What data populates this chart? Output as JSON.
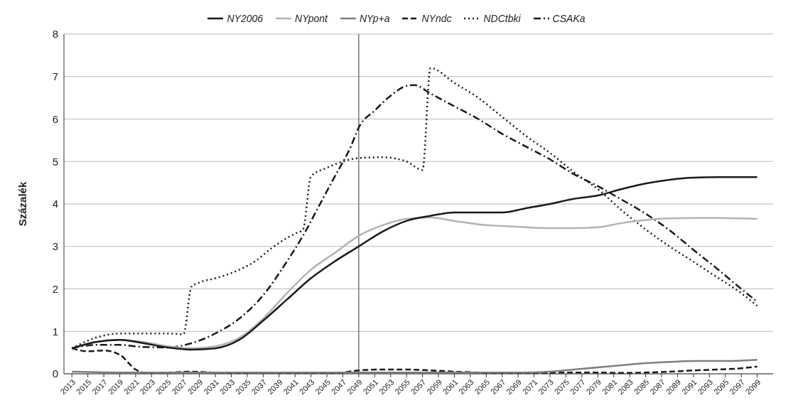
{
  "chart_data": {
    "type": "line",
    "ylabel": "Százalék",
    "xlim": [
      2012,
      2101
    ],
    "xticks": [
      2013,
      2015,
      2017,
      2019,
      2021,
      2023,
      2025,
      2027,
      2029,
      2031,
      2033,
      2035,
      2037,
      2039,
      2041,
      2043,
      2045,
      2047,
      2049,
      2051,
      2053,
      2055,
      2057,
      2059,
      2061,
      2063,
      2065,
      2067,
      2069,
      2071,
      2073,
      2075,
      2077,
      2079,
      2081,
      2083,
      2085,
      2087,
      2089,
      2091,
      2093,
      2095,
      2097,
      2099
    ],
    "ylim": [
      0,
      8
    ],
    "yticks": [
      0,
      1,
      2,
      3,
      4,
      5,
      6,
      7,
      8
    ],
    "grid": "y",
    "legend": "top",
    "marker": "none",
    "ref_lines": [
      {
        "axis": "x",
        "value": 2049,
        "color": "#333333"
      }
    ],
    "series": [
      {
        "name": "NY2006",
        "color": "#1a1a1a",
        "line_style": "solid",
        "x": [
          2013,
          2016,
          2019,
          2022,
          2025,
          2028,
          2031,
          2034,
          2037,
          2040,
          2043,
          2046,
          2049,
          2052,
          2055,
          2058,
          2061,
          2064,
          2067,
          2070,
          2073,
          2076,
          2079,
          2082,
          2085,
          2088,
          2091,
          2094,
          2097,
          2099
        ],
        "values": [
          0.6,
          0.75,
          0.8,
          0.72,
          0.62,
          0.57,
          0.6,
          0.8,
          1.25,
          1.75,
          2.25,
          2.65,
          3.0,
          3.35,
          3.6,
          3.72,
          3.8,
          3.8,
          3.8,
          3.9,
          4.0,
          4.12,
          4.2,
          4.35,
          4.48,
          4.57,
          4.62,
          4.63,
          4.63,
          4.63
        ]
      },
      {
        "name": "NYpont",
        "color": "#b3b3b3",
        "line_style": "solid",
        "x": [
          2013,
          2016,
          2019,
          2022,
          2025,
          2028,
          2031,
          2034,
          2037,
          2040,
          2043,
          2046,
          2049,
          2052,
          2055,
          2058,
          2061,
          2064,
          2067,
          2070,
          2073,
          2076,
          2079,
          2082,
          2085,
          2088,
          2091,
          2094,
          2097,
          2099
        ],
        "values": [
          0.6,
          0.75,
          0.8,
          0.75,
          0.65,
          0.6,
          0.65,
          0.85,
          1.3,
          1.9,
          2.45,
          2.85,
          3.25,
          3.5,
          3.65,
          3.68,
          3.6,
          3.52,
          3.48,
          3.45,
          3.43,
          3.43,
          3.45,
          3.55,
          3.62,
          3.66,
          3.67,
          3.67,
          3.66,
          3.65
        ]
      },
      {
        "name": "NYp+a",
        "color": "#7f7f7f",
        "line_style": "solid",
        "x": [
          2013,
          2020,
          2030,
          2040,
          2050,
          2060,
          2070,
          2073,
          2076,
          2079,
          2082,
          2085,
          2088,
          2091,
          2094,
          2097,
          2099
        ],
        "values": [
          0.05,
          0.03,
          0.03,
          0.03,
          0.03,
          0.03,
          0.03,
          0.05,
          0.1,
          0.15,
          0.2,
          0.25,
          0.28,
          0.3,
          0.3,
          0.31,
          0.33
        ]
      },
      {
        "name": "NYndc",
        "color": "#1a1a1a",
        "line_style": "dashed",
        "x": [
          2013,
          2015,
          2017,
          2019,
          2021,
          2022,
          2025,
          2028,
          2031,
          2034,
          2037,
          2040,
          2043,
          2046,
          2049,
          2052,
          2055,
          2058,
          2061,
          2064,
          2067,
          2070,
          2073,
          2076,
          2079,
          2082,
          2085,
          2088,
          2091,
          2094,
          2097,
          2099
        ],
        "values": [
          0.6,
          0.53,
          0.55,
          0.45,
          0.1,
          0.03,
          0.03,
          0.05,
          0.03,
          0.02,
          0.03,
          0.02,
          0.0,
          0.01,
          0.08,
          0.1,
          0.1,
          0.08,
          0.05,
          0.03,
          0.0,
          0.0,
          0.02,
          0.03,
          0.03,
          0.02,
          0.03,
          0.05,
          0.08,
          0.1,
          0.13,
          0.17
        ]
      },
      {
        "name": "NDCtbki",
        "color": "#1a1a1a",
        "line_style": "dotted",
        "x": [
          2013,
          2016,
          2019,
          2022,
          2025,
          2027,
          2028,
          2029,
          2031,
          2034,
          2036,
          2038,
          2040,
          2041,
          2042,
          2043,
          2045,
          2047,
          2049,
          2052,
          2055,
          2057,
          2058,
          2061,
          2064,
          2067,
          2070,
          2073,
          2076,
          2079,
          2082,
          2085,
          2088,
          2091,
          2094,
          2097,
          2099
        ],
        "values": [
          0.6,
          0.85,
          0.95,
          0.95,
          0.95,
          0.93,
          2.05,
          2.15,
          2.25,
          2.45,
          2.65,
          2.95,
          3.2,
          3.3,
          3.4,
          4.65,
          4.85,
          5.0,
          5.08,
          5.1,
          5.0,
          4.8,
          7.2,
          6.85,
          6.5,
          6.05,
          5.6,
          5.2,
          4.75,
          4.35,
          3.85,
          3.4,
          3.0,
          2.64,
          2.27,
          1.9,
          1.6
        ]
      },
      {
        "name": "CSAKa",
        "color": "#1a1a1a",
        "line_style": "dashdot",
        "x": [
          2013,
          2016,
          2019,
          2022,
          2025,
          2028,
          2031,
          2034,
          2037,
          2040,
          2042,
          2044,
          2046,
          2048,
          2049,
          2051,
          2053,
          2055,
          2056,
          2058,
          2061,
          2064,
          2067,
          2070,
          2073,
          2076,
          2079,
          2082,
          2085,
          2088,
          2091,
          2094,
          2097,
          2099
        ],
        "values": [
          0.6,
          0.68,
          0.68,
          0.63,
          0.62,
          0.72,
          0.95,
          1.3,
          1.85,
          2.65,
          3.25,
          3.95,
          4.65,
          5.35,
          5.8,
          6.2,
          6.55,
          6.78,
          6.8,
          6.6,
          6.3,
          6.0,
          5.65,
          5.35,
          5.05,
          4.7,
          4.42,
          4.1,
          3.77,
          3.38,
          2.92,
          2.47,
          2.0,
          1.7
        ]
      }
    ]
  }
}
